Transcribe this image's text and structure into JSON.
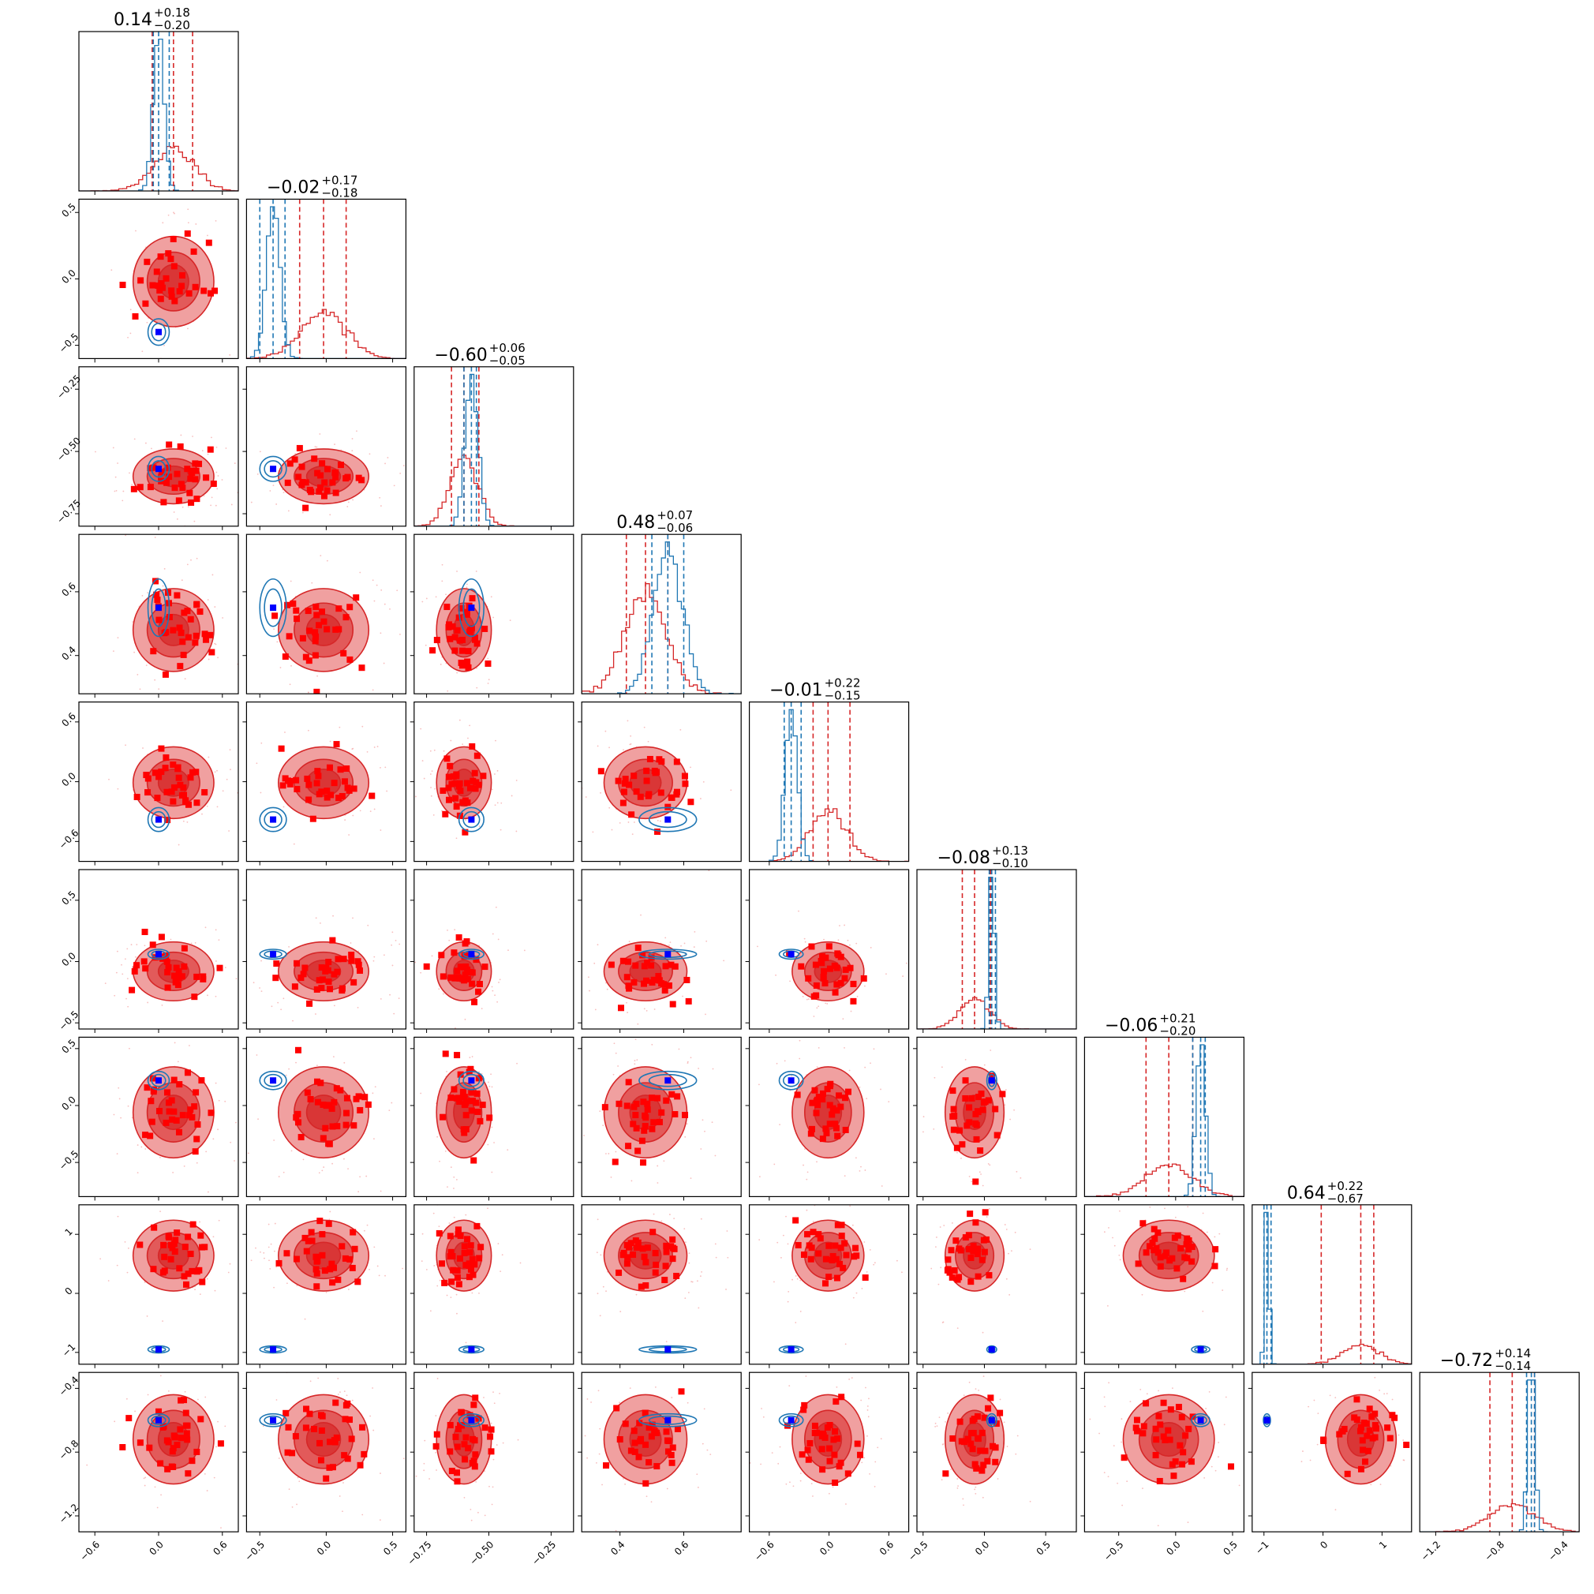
{
  "chart_data": {
    "type": "corner",
    "n_params": 9,
    "colors": {
      "red_line": "#d62728",
      "red_fill_light": "#f0a0a0",
      "red_fill_dark": "#d93636",
      "red_marker": "#ff0000",
      "blue_line": "#1f77b4",
      "blue_marker": "#0000ff"
    },
    "params": [
      {
        "title_median": "0.14",
        "title_plus": "+0.18",
        "title_minus": "−0.20",
        "range": [
          -0.75,
          0.75
        ],
        "ticks": [
          -0.6,
          0.0,
          0.6
        ],
        "ticklabels": [
          "−0.6",
          "0.0",
          "0.6"
        ],
        "red": {
          "median": 0.14,
          "lo": -0.06,
          "hi": 0.32,
          "sigma": 0.19
        },
        "blue": {
          "median": 0.0,
          "lo": -0.05,
          "hi": 0.1,
          "sigma": 0.05
        }
      },
      {
        "title_median": "−0.02",
        "title_plus": "+0.17",
        "title_minus": "−0.18",
        "range": [
          -0.6,
          0.6
        ],
        "ticks": [
          -0.5,
          0.0,
          0.5
        ],
        "ticklabels": [
          "−0.5",
          "0.0",
          "0.5"
        ],
        "red": {
          "median": -0.02,
          "lo": -0.2,
          "hi": 0.15,
          "sigma": 0.17
        },
        "blue": {
          "median": -0.4,
          "lo": -0.5,
          "hi": -0.31,
          "sigma": 0.05
        }
      },
      {
        "title_median": "−0.60",
        "title_plus": "+0.06",
        "title_minus": "−0.05",
        "range": [
          -0.8,
          -0.16
        ],
        "ticks": [
          -0.75,
          -0.5,
          -0.25
        ],
        "ticklabels": [
          "−0.75",
          "−0.50",
          "−0.25"
        ],
        "red": {
          "median": -0.6,
          "lo": -0.65,
          "hi": -0.54,
          "sigma": 0.055
        },
        "blue": {
          "median": -0.57,
          "lo": -0.6,
          "hi": -0.55,
          "sigma": 0.025
        }
      },
      {
        "title_median": "0.48",
        "title_plus": "+0.07",
        "title_minus": "−0.06",
        "range": [
          0.28,
          0.78
        ],
        "ticks": [
          0.4,
          0.6
        ],
        "ticklabels": [
          "0.4",
          "0.6"
        ],
        "red": {
          "median": 0.48,
          "lo": 0.42,
          "hi": 0.55,
          "sigma": 0.065
        },
        "blue": {
          "median": 0.55,
          "lo": 0.5,
          "hi": 0.6,
          "sigma": 0.045
        }
      },
      {
        "title_median": "−0.01",
        "title_plus": "+0.22",
        "title_minus": "−0.15",
        "range": [
          -0.8,
          0.8
        ],
        "ticks": [
          -0.6,
          0.0,
          0.6
        ],
        "ticklabels": [
          "−0.6",
          "0.0",
          "0.6"
        ],
        "red": {
          "median": -0.01,
          "lo": -0.16,
          "hi": 0.21,
          "sigma": 0.18
        },
        "blue": {
          "median": -0.38,
          "lo": -0.45,
          "hi": -0.28,
          "sigma": 0.06
        }
      },
      {
        "title_median": "−0.08",
        "title_plus": "+0.13",
        "title_minus": "−0.10",
        "range": [
          -0.55,
          0.75
        ],
        "ticks": [
          -0.5,
          0.0,
          0.5
        ],
        "ticklabels": [
          "−0.5",
          "0.0",
          "0.5"
        ],
        "red": {
          "median": -0.08,
          "lo": -0.18,
          "hi": 0.05,
          "sigma": 0.12
        },
        "blue": {
          "median": 0.06,
          "lo": 0.04,
          "hi": 0.09,
          "sigma": 0.02
        }
      },
      {
        "title_median": "−0.06",
        "title_plus": "+0.21",
        "title_minus": "−0.20",
        "range": [
          -0.8,
          0.6
        ],
        "ticks": [
          -0.5,
          0.0,
          0.5
        ],
        "ticklabels": [
          "−0.5",
          "0.0",
          "0.5"
        ],
        "red": {
          "median": -0.06,
          "lo": -0.26,
          "hi": 0.15,
          "sigma": 0.2
        },
        "blue": {
          "median": 0.22,
          "lo": 0.15,
          "hi": 0.26,
          "sigma": 0.04
        }
      },
      {
        "title_median": "0.64",
        "title_plus": "+0.22",
        "title_minus": "−0.67",
        "range": [
          -1.2,
          1.5
        ],
        "ticks": [
          -1.0,
          0.0,
          1.0
        ],
        "ticklabels": [
          "−1",
          "0",
          "1"
        ],
        "red": {
          "median": 0.64,
          "lo": -0.03,
          "hi": 0.86,
          "sigma": 0.3
        },
        "blue": {
          "median": -0.95,
          "lo": -1.0,
          "hi": -0.88,
          "sigma": 0.03
        }
      },
      {
        "title_median": "−0.72",
        "title_plus": "+0.14",
        "title_minus": "−0.14",
        "range": [
          -1.3,
          -0.3
        ],
        "ticks": [
          -1.2,
          -0.8,
          -0.4
        ],
        "ticklabels": [
          "−1.2",
          "−0.8",
          "−0.4"
        ],
        "red": {
          "median": -0.72,
          "lo": -0.86,
          "hi": -0.58,
          "sigma": 0.14
        },
        "blue": {
          "median": -0.6,
          "lo": -0.63,
          "hi": -0.58,
          "sigma": 0.02
        }
      }
    ]
  }
}
